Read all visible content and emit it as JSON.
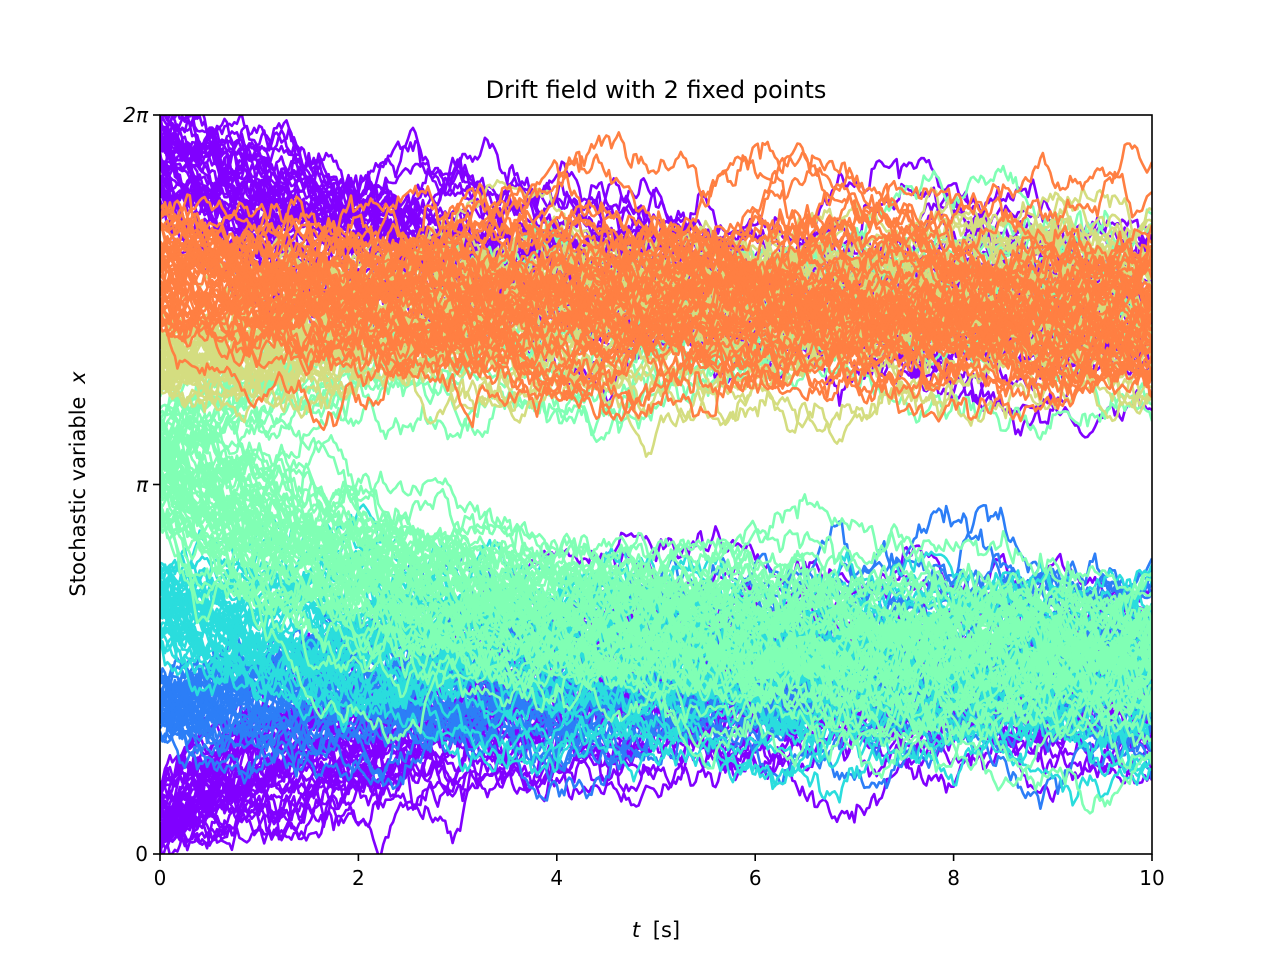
{
  "chart_data": {
    "type": "line",
    "title": "Drift field with 2 fixed points",
    "xlabel": "t [s]",
    "xlabel_var": "t",
    "xlabel_unit": "[s]",
    "ylabel": "Stochastic variable x",
    "ylabel_text": "Stochastic variable",
    "ylabel_var": "x",
    "xlim": [
      0,
      10
    ],
    "ylim": [
      0,
      6.283185
    ],
    "x_ticks": [
      {
        "value": 0,
        "label": "0"
      },
      {
        "value": 2,
        "label": "2"
      },
      {
        "value": 4,
        "label": "4"
      },
      {
        "value": 6,
        "label": "6"
      },
      {
        "value": 8,
        "label": "8"
      },
      {
        "value": 10,
        "label": "10"
      }
    ],
    "y_ticks": [
      {
        "value": 0,
        "label": "0"
      },
      {
        "value": 3.141593,
        "label": "π"
      },
      {
        "value": 6.283185,
        "label": "2π"
      }
    ],
    "grid": false,
    "legend": "none",
    "fixed_points": [
      1.57,
      4.71
    ],
    "groups": [
      {
        "color": "#8000ff",
        "x0_range": [
          5.55,
          6.28
        ],
        "target": 4.71,
        "count": 40
      },
      {
        "color": "#8000ff",
        "x0_range": [
          0.0,
          0.6
        ],
        "target": 1.57,
        "count": 40
      },
      {
        "color": "#2c7ef7",
        "x0_range": [
          1.0,
          1.5
        ],
        "target": 1.57,
        "count": 40
      },
      {
        "color": "#2adddd",
        "x0_range": [
          1.8,
          2.5
        ],
        "target": 1.57,
        "count": 40
      },
      {
        "color": "#80ffb4",
        "x0_range": [
          2.8,
          3.7
        ],
        "target": 1.57,
        "count": 50
      },
      {
        "color": "#80ffb4",
        "x0_range": [
          3.3,
          3.9
        ],
        "target": 4.71,
        "count": 15
      },
      {
        "color": "#d4dd80",
        "x0_range": [
          3.9,
          4.5
        ],
        "target": 4.71,
        "count": 40
      },
      {
        "color": "#ff7f42",
        "x0_range": [
          4.5,
          5.5
        ],
        "target": 4.71,
        "count": 50
      }
    ]
  }
}
